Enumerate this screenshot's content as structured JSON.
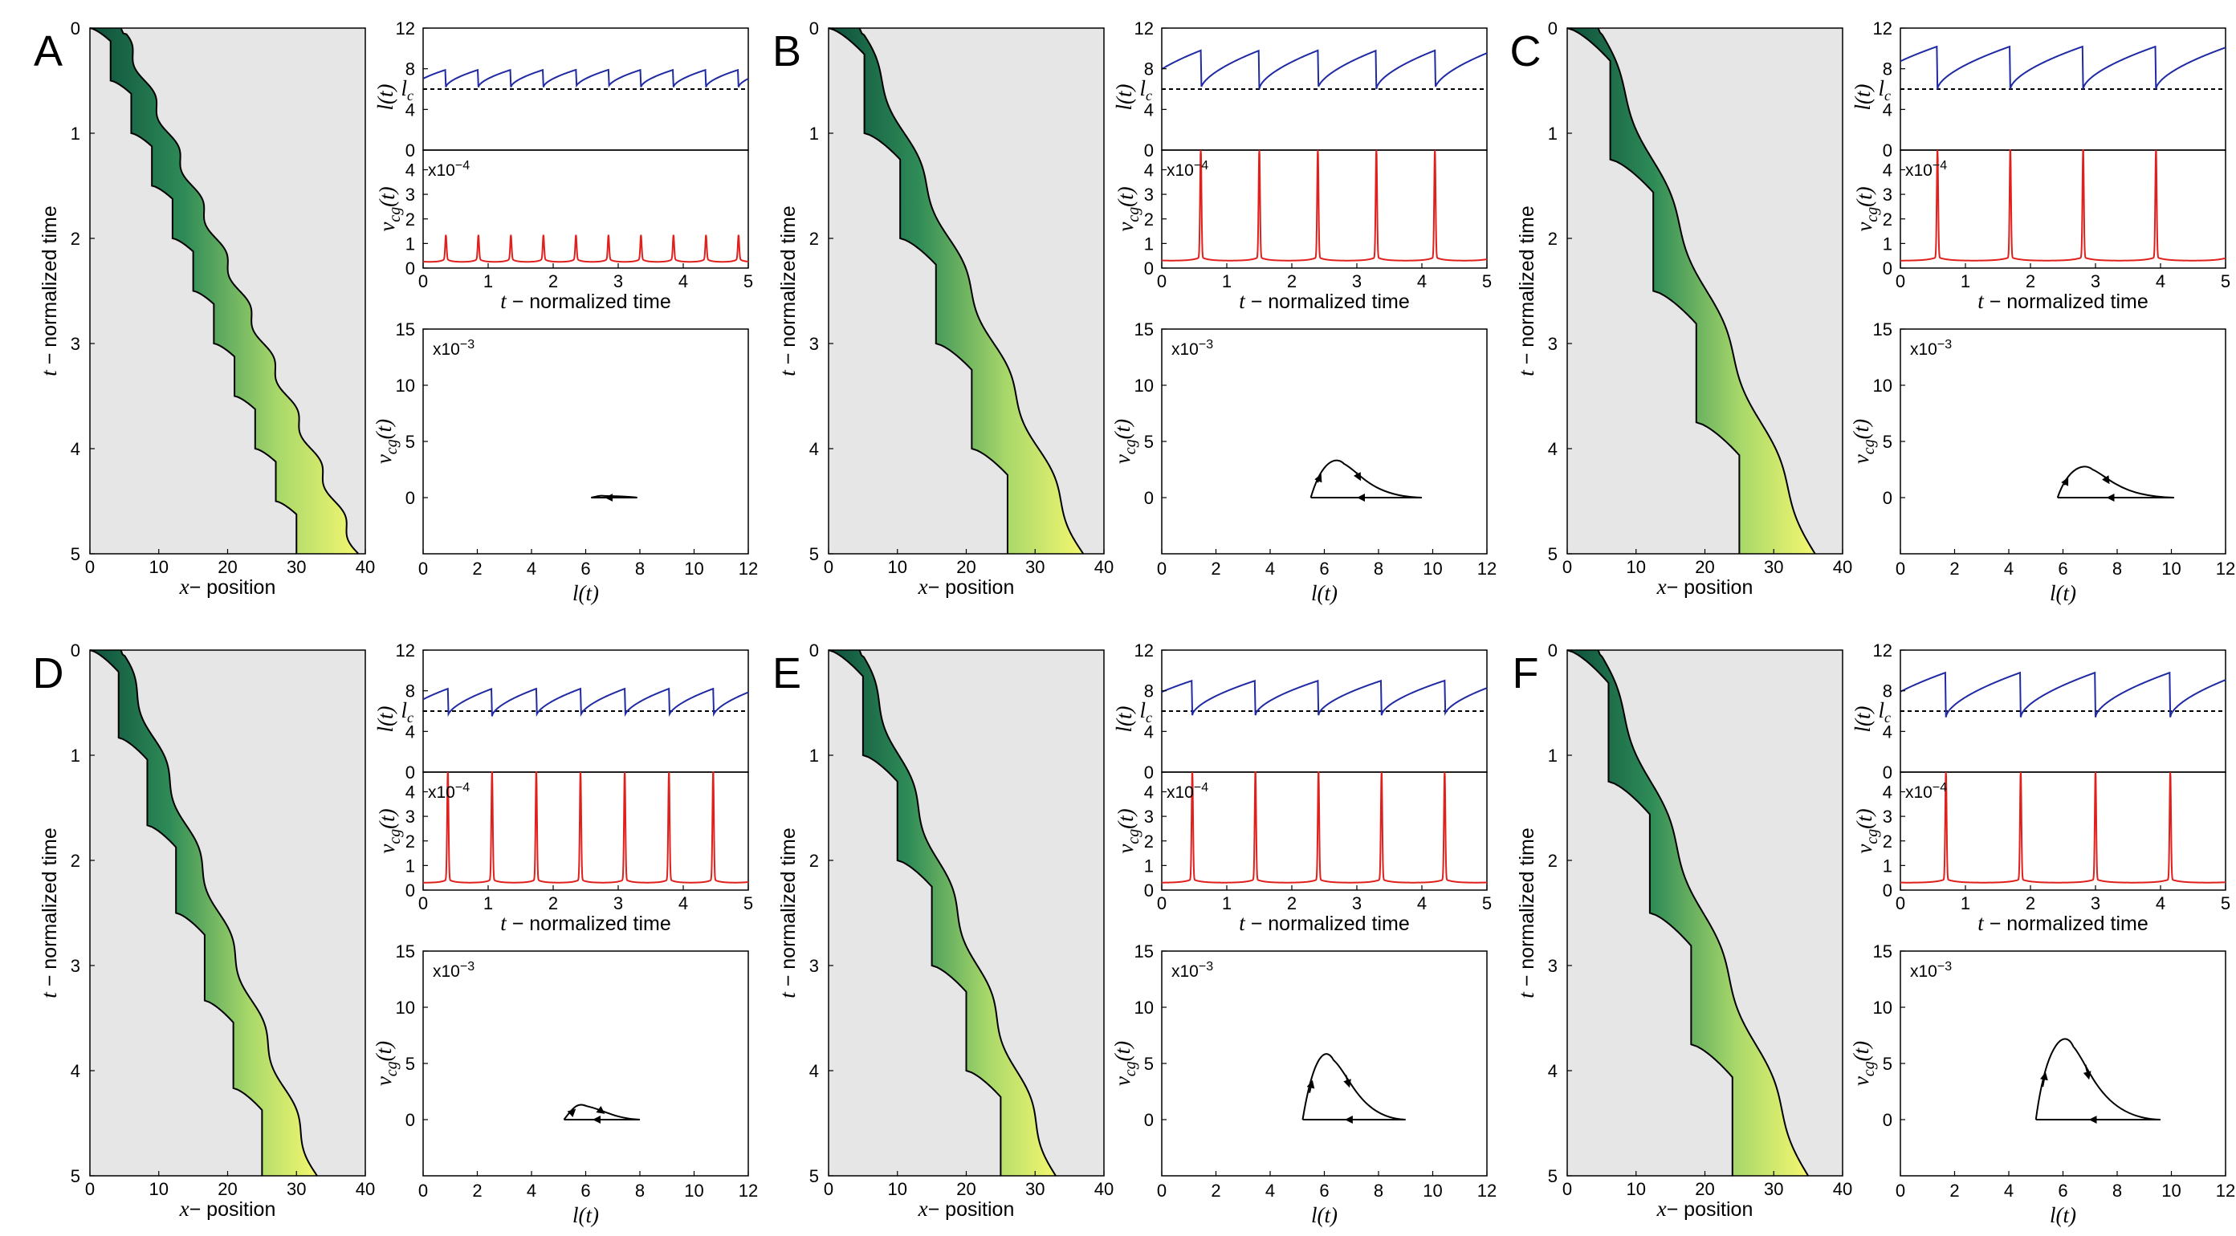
{
  "figure": {
    "xt_axis": {
      "xlabel_var": "x",
      "xlabel_text": "− position",
      "ylabel_var": "t",
      "ylabel_text": " − normalized time",
      "xticks": [
        0,
        10,
        20,
        30,
        40
      ],
      "yticks": [
        0,
        1,
        2,
        3,
        4,
        5
      ]
    },
    "l_axis": {
      "ylabel": "l(t)",
      "yticks": [
        0,
        4,
        8,
        12
      ],
      "lc_label": "l",
      "lc_sub": "c",
      "lc_value": 6
    },
    "v_axis": {
      "ylabel_main": "v",
      "ylabel_sub": "cg",
      "ylabel_tail": "(t)",
      "yticks": [
        0,
        1,
        2,
        3,
        4
      ],
      "sci_base": "x10",
      "sci_exp": "−4",
      "xlabel_var": "t",
      "xlabel_text": " − normalized time",
      "xticks": [
        0,
        1,
        2,
        3,
        4,
        5
      ]
    },
    "phase_axis": {
      "ylabel_main": "v",
      "ylabel_sub": "cg",
      "ylabel_tail": "(t)",
      "yticks": [
        0,
        5,
        10,
        15
      ],
      "sci_base": "x10",
      "sci_exp": "−3",
      "xlabel": "l(t)",
      "xticks": [
        0,
        2,
        4,
        6,
        8,
        10,
        12
      ]
    }
  },
  "chart_data": [
    {
      "panel": "A",
      "type": "line",
      "kymo_cycles": 10,
      "kymo_end_x": [
        30,
        39
      ],
      "l_min": 6.2,
      "l_max": 7.9,
      "period": 0.5,
      "l_phase": 0.15,
      "v_peak": 1.2,
      "v_base": 0.25,
      "phase_hump": 0.15,
      "phase_range": [
        6.2,
        7.9
      ],
      "title_l": "l(t)",
      "title_v": "v_cg(t) x10^-4",
      "title_phase": "v_cg(t) vs l(t) x10^-3"
    },
    {
      "panel": "B",
      "type": "line",
      "kymo_cycles": 5,
      "kymo_end_x": [
        26,
        37
      ],
      "l_min": 6.0,
      "l_max": 9.8,
      "period": 0.9,
      "l_phase": 0.3,
      "v_peak": 4.8,
      "v_base": 0.3,
      "phase_hump": 3.0,
      "phase_range": [
        5.5,
        9.6
      ],
      "title_l": "l(t)",
      "title_v": "v_cg(t) x10^-4",
      "title_phase": "v_cg(t) vs l(t) x10^-3"
    },
    {
      "panel": "C",
      "type": "line",
      "kymo_cycles": 4,
      "kymo_end_x": [
        25,
        36
      ],
      "l_min": 6.0,
      "l_max": 10.2,
      "period": 1.12,
      "l_phase": 0.55,
      "v_peak": 4.8,
      "v_base": 0.3,
      "phase_hump": 2.5,
      "phase_range": [
        5.8,
        10.1
      ],
      "title_l": "l(t)",
      "title_v": "v_cg(t) x10^-4",
      "title_phase": "v_cg(t) vs l(t) x10^-3"
    },
    {
      "panel": "D",
      "type": "line",
      "kymo_cycles": 6,
      "kymo_end_x": [
        25,
        33
      ],
      "l_min": 5.5,
      "l_max": 8.2,
      "period": 0.68,
      "l_phase": 0.3,
      "v_peak": 4.8,
      "v_base": 0.3,
      "phase_hump": 1.2,
      "phase_range": [
        5.2,
        8.0
      ],
      "title_l": "l(t)",
      "title_v": "v_cg(t) x10^-4",
      "title_phase": "v_cg(t) vs l(t) x10^-3"
    },
    {
      "panel": "E",
      "type": "line",
      "kymo_cycles": 5,
      "kymo_end_x": [
        25,
        33
      ],
      "l_min": 5.6,
      "l_max": 9.0,
      "period": 0.97,
      "l_phase": 0.5,
      "v_peak": 4.8,
      "v_base": 0.3,
      "phase_hump": 5.3,
      "phase_range": [
        5.2,
        9.0
      ],
      "title_l": "l(t)",
      "title_v": "v_cg(t) x10^-4",
      "title_phase": "v_cg(t) vs l(t) x10^-3"
    },
    {
      "panel": "F",
      "type": "line",
      "kymo_cycles": 4,
      "kymo_end_x": [
        24,
        35
      ],
      "l_min": 5.4,
      "l_max": 9.8,
      "period": 1.15,
      "l_phase": 0.45,
      "v_peak": 4.8,
      "v_base": 0.3,
      "phase_hump": 6.5,
      "phase_range": [
        5.0,
        9.6
      ],
      "title_l": "l(t)",
      "title_v": "v_cg(t) x10^-4",
      "title_phase": "v_cg(t) vs l(t) x10^-3"
    }
  ]
}
